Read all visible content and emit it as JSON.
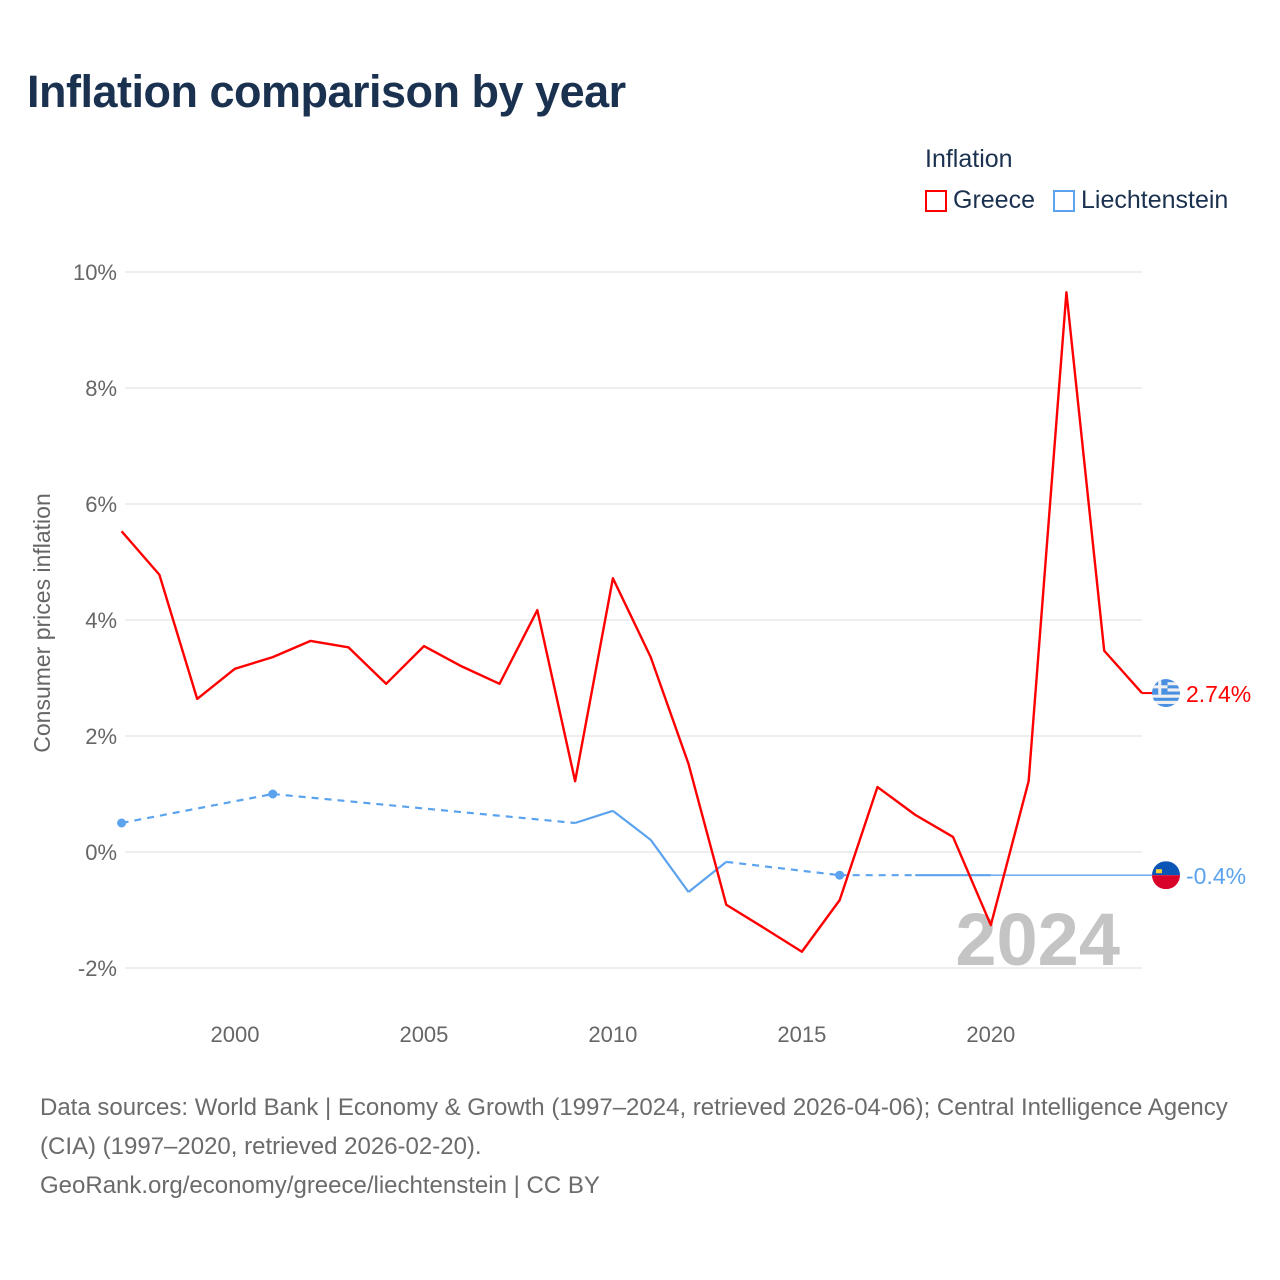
{
  "chart_data": {
    "type": "line",
    "title": "Inflation comparison by year",
    "ylabel": "Consumer prices inflation",
    "xlabel": "",
    "legend_title": "Inflation",
    "legend_position": "top-right",
    "ylim": [
      -2,
      10
    ],
    "xlim": [
      1997,
      2024
    ],
    "yticks": [
      -2,
      0,
      2,
      4,
      6,
      8,
      10
    ],
    "ytick_labels": [
      "-2%",
      "0%",
      "2%",
      "4%",
      "6%",
      "8%",
      "10%"
    ],
    "xticks": [
      2000,
      2005,
      2010,
      2015,
      2020
    ],
    "xtick_labels": [
      "2000",
      "2005",
      "2010",
      "2015",
      "2020"
    ],
    "grid": true,
    "year_watermark": "2024",
    "x": [
      1997,
      1998,
      1999,
      2000,
      2001,
      2002,
      2003,
      2004,
      2005,
      2006,
      2007,
      2008,
      2009,
      2010,
      2011,
      2012,
      2013,
      2014,
      2015,
      2016,
      2017,
      2018,
      2019,
      2020,
      2021,
      2022,
      2023,
      2024
    ],
    "series": [
      {
        "name": "Greece",
        "color": "#ff0000",
        "end_label": "2.74%",
        "flag": "greece-flag",
        "values": [
          5.53,
          4.78,
          2.64,
          3.16,
          3.36,
          3.64,
          3.53,
          2.9,
          3.55,
          3.2,
          2.9,
          4.17,
          1.22,
          4.72,
          3.36,
          1.52,
          -0.91,
          -1.31,
          -1.72,
          -0.83,
          1.12,
          0.64,
          0.26,
          -1.26,
          1.22,
          9.65,
          3.47,
          2.74
        ]
      },
      {
        "name": "Liechtenstein",
        "color": "#5ba3ee",
        "end_label": "-0.4%",
        "flag": "liechtenstein-flag",
        "values": [
          0.5,
          null,
          null,
          null,
          1.0,
          null,
          null,
          null,
          null,
          null,
          null,
          null,
          0.5,
          0.71,
          0.21,
          -0.69,
          -0.17,
          null,
          null,
          -0.4,
          null,
          -0.4,
          -0.4,
          -0.4,
          null,
          null,
          null,
          null
        ]
      }
    ]
  },
  "footer": {
    "sources": "Data sources: World Bank | Economy & Growth (1997–2024, retrieved 2026-04-06); Central Intelligence Agency (CIA) (1997–2020, retrieved 2026-02-20).",
    "link": "GeoRank.org/economy/greece/liechtenstein | CC BY"
  }
}
